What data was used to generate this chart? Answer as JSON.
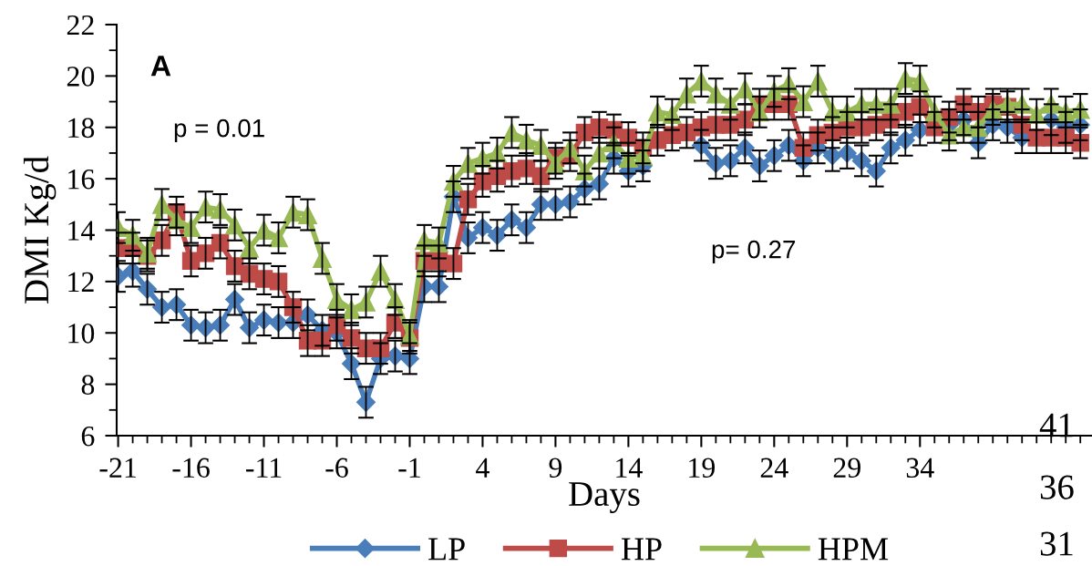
{
  "chart_data": {
    "type": "line",
    "xlabel": "Days",
    "ylabel": "DMI Kg/d",
    "x": [
      -21,
      -20,
      -19,
      -18,
      -17,
      -16,
      -15,
      -14,
      -13,
      -12,
      -11,
      -10,
      -9,
      -8,
      -7,
      -6,
      -5,
      -4,
      -3,
      -2,
      -1,
      0,
      1,
      2,
      3,
      4,
      5,
      6,
      7,
      8,
      9,
      10,
      11,
      12,
      13,
      14,
      15,
      16,
      17,
      18,
      19,
      20,
      21,
      22,
      23,
      24,
      25,
      26,
      27,
      28,
      29,
      30,
      31,
      32,
      33,
      34,
      35,
      36,
      37,
      38,
      39,
      40,
      41,
      42,
      43,
      44,
      45
    ],
    "xlim": [
      -21.1,
      45.8
    ],
    "xticks": [
      -21,
      -16,
      -11,
      -6,
      -1,
      4,
      9,
      14,
      19,
      24,
      29,
      34
    ],
    "ylim": [
      6,
      22
    ],
    "yticks": [
      6,
      8,
      10,
      12,
      14,
      16,
      18,
      20,
      22
    ],
    "grid": false,
    "legend": "bottom",
    "line_style": "solid",
    "series": [
      {
        "name": "LP",
        "color": "#4a7ebb",
        "marker": "diamond",
        "values": [
          12.2,
          12.4,
          11.7,
          11.0,
          11.1,
          10.3,
          10.2,
          10.3,
          11.3,
          10.2,
          10.5,
          10.4,
          10.4,
          10.7,
          10.1,
          10.0,
          8.8,
          7.3,
          9.0,
          9.1,
          9.0,
          11.8,
          11.8,
          15.3,
          13.7,
          14.1,
          13.8,
          14.4,
          14.1,
          15.0,
          15.0,
          15.1,
          15.6,
          15.8,
          16.8,
          16.3,
          16.5,
          null,
          null,
          null,
          17.3,
          16.6,
          16.7,
          17.2,
          16.5,
          16.9,
          17.3,
          16.7,
          17.2,
          16.9,
          17.0,
          16.7,
          16.3,
          17.2,
          17.5,
          17.9,
          null,
          18.1,
          18.3,
          17.4,
          18.1,
          18.0,
          17.6,
          null,
          18.3,
          18.0,
          18.1
        ],
        "errors": [
          0.6,
          0.6,
          0.6,
          0.6,
          0.6,
          0.6,
          0.6,
          0.6,
          0.6,
          0.6,
          0.6,
          0.6,
          0.6,
          0.6,
          0.6,
          0.6,
          0.6,
          0.6,
          0.6,
          0.6,
          0.6,
          0.6,
          0.6,
          0.6,
          0.6,
          0.6,
          0.6,
          0.6,
          0.6,
          0.6,
          0.6,
          0.6,
          0.6,
          0.6,
          0.6,
          0.6,
          0.6,
          null,
          null,
          null,
          0.6,
          0.6,
          0.6,
          0.6,
          0.6,
          0.6,
          0.6,
          0.6,
          0.6,
          0.6,
          0.6,
          0.6,
          0.6,
          0.6,
          0.6,
          0.6,
          null,
          0.6,
          0.6,
          0.6,
          0.6,
          0.6,
          0.6,
          null,
          0.6,
          0.6,
          0.6
        ]
      },
      {
        "name": "HP",
        "color": "#be4b48",
        "marker": "square",
        "values": [
          13.3,
          13.3,
          13.0,
          13.6,
          14.7,
          12.8,
          13.1,
          13.5,
          12.6,
          12.3,
          12.1,
          12.0,
          11.0,
          9.7,
          9.7,
          10.3,
          9.8,
          9.4,
          9.4,
          10.4,
          9.8,
          12.8,
          12.8,
          12.7,
          15.2,
          15.9,
          16.1,
          16.3,
          16.4,
          16.1,
          16.8,
          16.9,
          17.8,
          18.0,
          17.9,
          17.6,
          17.2,
          17.5,
          17.7,
          17.8,
          18.0,
          18.1,
          18.1,
          18.3,
          18.9,
          18.9,
          18.9,
          17.2,
          17.7,
          17.8,
          18.0,
          18.0,
          18.1,
          18.3,
          18.6,
          18.8,
          18.0,
          18.4,
          18.9,
          18.6,
          18.9,
          18.8,
          18.1,
          17.6,
          17.6,
          17.6,
          17.4
        ],
        "errors": [
          0.6,
          0.6,
          0.6,
          0.6,
          0.6,
          0.6,
          0.6,
          0.6,
          0.6,
          0.6,
          0.6,
          0.6,
          0.6,
          0.6,
          0.6,
          0.6,
          0.6,
          0.6,
          0.6,
          0.6,
          0.6,
          0.6,
          0.6,
          0.6,
          0.6,
          0.6,
          0.6,
          0.6,
          0.6,
          0.6,
          0.6,
          0.6,
          0.6,
          0.6,
          0.6,
          0.6,
          0.6,
          0.6,
          0.6,
          0.6,
          0.6,
          0.6,
          0.6,
          0.6,
          0.6,
          0.6,
          0.6,
          0.6,
          0.6,
          0.6,
          0.6,
          0.6,
          0.6,
          0.6,
          0.6,
          0.6,
          0.6,
          0.6,
          0.6,
          0.6,
          0.6,
          0.6,
          0.6,
          0.6,
          0.6,
          0.6,
          0.6
        ]
      },
      {
        "name": "HPM",
        "color": "#98b954",
        "marker": "triangle",
        "values": [
          14.1,
          13.8,
          13.1,
          15.0,
          14.4,
          14.1,
          14.9,
          14.8,
          14.2,
          13.3,
          14.0,
          13.7,
          14.7,
          14.6,
          12.9,
          11.3,
          10.9,
          11.2,
          12.4,
          11.3,
          9.9,
          13.6,
          13.5,
          15.9,
          16.6,
          16.8,
          17.0,
          17.8,
          17.5,
          17.3,
          16.6,
          17.2,
          16.3,
          17.0,
          17.4,
          16.8,
          16.9,
          18.6,
          18.5,
          19.3,
          19.8,
          19.3,
          18.9,
          19.5,
          18.6,
          19.4,
          19.7,
          19.0,
          19.8,
          18.6,
          18.6,
          18.9,
          18.9,
          18.9,
          19.9,
          19.8,
          18.6,
          17.7,
          18.0,
          18.0,
          18.7,
          18.9,
          18.9,
          18.5,
          18.9,
          18.6,
          18.7
        ],
        "errors": [
          0.6,
          0.6,
          0.6,
          0.6,
          0.6,
          0.6,
          0.6,
          0.6,
          0.6,
          0.6,
          0.6,
          0.6,
          0.6,
          0.6,
          0.6,
          0.6,
          0.6,
          0.6,
          0.6,
          0.6,
          0.6,
          0.6,
          0.6,
          0.6,
          0.6,
          0.6,
          0.6,
          0.6,
          0.6,
          0.6,
          0.6,
          0.6,
          0.6,
          0.6,
          0.6,
          0.6,
          0.6,
          0.6,
          0.6,
          0.6,
          0.6,
          0.6,
          0.6,
          0.6,
          0.6,
          0.6,
          0.6,
          0.6,
          0.6,
          0.6,
          0.6,
          0.6,
          0.6,
          0.6,
          0.6,
          0.6,
          0.6,
          0.6,
          0.6,
          0.6,
          0.6,
          0.6,
          0.6,
          0.6,
          0.6,
          0.6,
          0.6
        ]
      }
    ],
    "annotations": [
      "A",
      "p = 0.01",
      "p= 0.27",
      "41",
      "36",
      "31"
    ]
  }
}
